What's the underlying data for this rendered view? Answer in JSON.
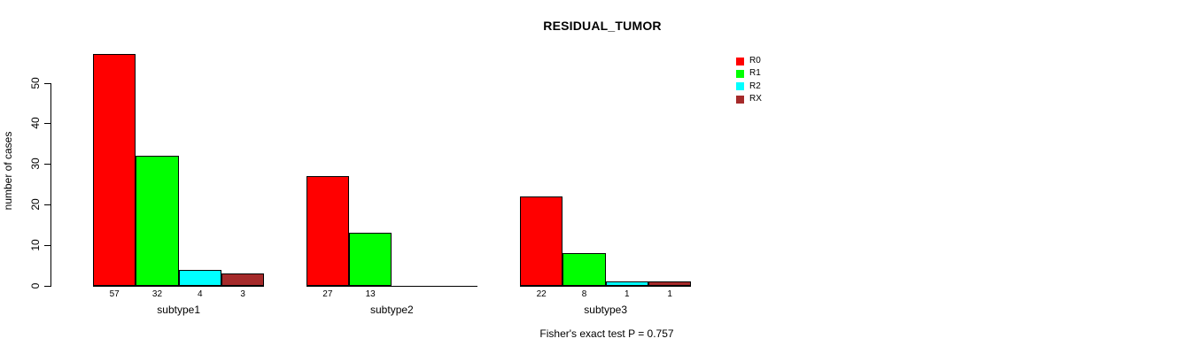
{
  "chart_data": {
    "type": "bar",
    "title": "RESIDUAL_TUMOR",
    "xlabel": "",
    "ylabel": "number of cases",
    "categories": [
      "subtype1",
      "subtype2",
      "subtype3"
    ],
    "series": [
      {
        "name": "R0",
        "color": "#ff0000",
        "values": [
          57,
          27,
          22
        ]
      },
      {
        "name": "R1",
        "color": "#00ff00",
        "values": [
          32,
          13,
          8
        ]
      },
      {
        "name": "R2",
        "color": "#00ffff",
        "values": [
          4,
          0,
          1
        ]
      },
      {
        "name": "RX",
        "color": "#a52a2a",
        "values": [
          3,
          0,
          1
        ]
      }
    ],
    "yticks": [
      0,
      10,
      20,
      30,
      40,
      50
    ],
    "ylim": [
      0,
      57
    ],
    "grid": false,
    "legend_position": "right",
    "bar_value_labels_shown": true,
    "zero_values_unlabeled": true,
    "annotation": "Fisher's exact test P = 0.757"
  },
  "colors": {
    "background": "#ffffff",
    "axis": "#000000",
    "text": "#000000"
  }
}
